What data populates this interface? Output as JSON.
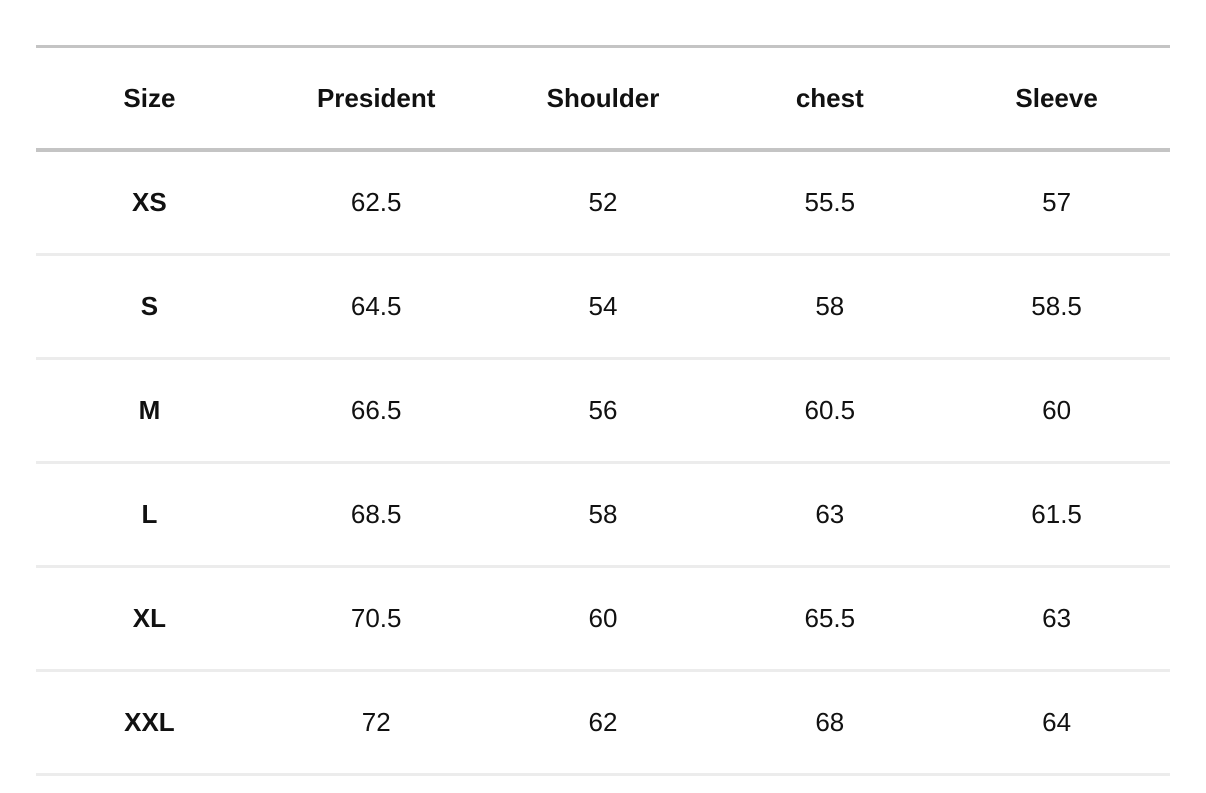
{
  "table": {
    "header": [
      "Size",
      "President",
      "Shoulder",
      "chest",
      "Sleeve"
    ],
    "rows": [
      [
        "XS",
        62.5,
        52,
        55.5,
        57
      ],
      [
        "S",
        64.5,
        54,
        58,
        58.5
      ],
      [
        "M",
        66.5,
        56,
        60.5,
        60
      ],
      [
        "L",
        68.5,
        58,
        63,
        61.5
      ],
      [
        "XL",
        70.5,
        60,
        65.5,
        63
      ],
      [
        "XXL",
        72,
        62,
        68,
        64
      ]
    ]
  }
}
